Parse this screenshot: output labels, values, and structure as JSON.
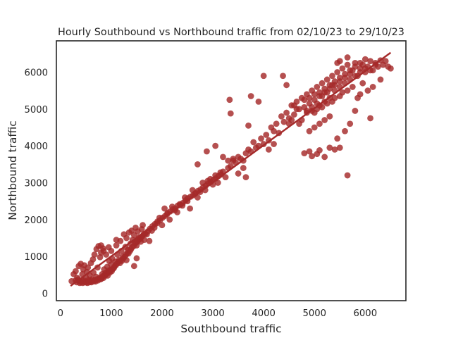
{
  "chart_data": {
    "type": "scatter",
    "title": "Hourly Southbound vs Northbound traffic from 02/10/23 to 29/10/23",
    "xlabel": "Southbound traffic",
    "ylabel": "Northbound traffic",
    "xlim": [
      -80,
      6800
    ],
    "ylim": [
      -200,
      6850
    ],
    "xticks": [
      0,
      1000,
      2000,
      3000,
      4000,
      5000,
      6000
    ],
    "yticks": [
      0,
      1000,
      2000,
      3000,
      4000,
      5000,
      6000
    ],
    "grid": false,
    "color": "#a52a2a",
    "regression_line": {
      "x": [
        200,
        6500
      ],
      "y": [
        200,
        6530
      ]
    },
    "points": [
      [
        220,
        330
      ],
      [
        260,
        520
      ],
      [
        300,
        600
      ],
      [
        330,
        420
      ],
      [
        360,
        740
      ],
      [
        380,
        280
      ],
      [
        400,
        800
      ],
      [
        420,
        350
      ],
      [
        430,
        520
      ],
      [
        450,
        650
      ],
      [
        470,
        760
      ],
      [
        480,
        300
      ],
      [
        500,
        430
      ],
      [
        520,
        580
      ],
      [
        540,
        700
      ],
      [
        560,
        330
      ],
      [
        580,
        480
      ],
      [
        600,
        820
      ],
      [
        620,
        380
      ],
      [
        640,
        920
      ],
      [
        650,
        560
      ],
      [
        670,
        1050
      ],
      [
        690,
        320
      ],
      [
        700,
        450
      ],
      [
        710,
        1200
      ],
      [
        730,
        700
      ],
      [
        750,
        1280
      ],
      [
        760,
        400
      ],
      [
        780,
        980
      ],
      [
        800,
        1100
      ],
      [
        820,
        520
      ],
      [
        840,
        1220
      ],
      [
        860,
        650
      ],
      [
        880,
        480
      ],
      [
        900,
        1050
      ],
      [
        920,
        720
      ],
      [
        940,
        580
      ],
      [
        960,
        880
      ],
      [
        980,
        620
      ],
      [
        1000,
        780
      ],
      [
        1020,
        940
      ],
      [
        1050,
        680
      ],
      [
        1080,
        860
      ],
      [
        1100,
        1300
      ],
      [
        1120,
        1050
      ],
      [
        1150,
        900
      ],
      [
        1180,
        1420
      ],
      [
        1200,
        1150
      ],
      [
        1230,
        1000
      ],
      [
        1250,
        1600
      ],
      [
        1280,
        1260
      ],
      [
        1300,
        1500
      ],
      [
        1330,
        1180
      ],
      [
        1350,
        1650
      ],
      [
        1380,
        1350
      ],
      [
        1400,
        1700
      ],
      [
        1420,
        1450
      ],
      [
        1450,
        1580
      ],
      [
        1480,
        1780
      ],
      [
        1500,
        1300
      ],
      [
        1520,
        1680
      ],
      [
        1550,
        1520
      ],
      [
        1580,
        1400
      ],
      [
        1600,
        1740
      ],
      [
        1620,
        1850
      ],
      [
        1650,
        1450
      ],
      [
        1700,
        1600
      ],
      [
        1750,
        1420
      ],
      [
        1800,
        1700
      ],
      [
        1850,
        1780
      ],
      [
        1900,
        1900
      ],
      [
        1950,
        2050
      ],
      [
        2000,
        1850
      ],
      [
        2050,
        2300
      ],
      [
        2100,
        2150
      ],
      [
        2150,
        2000
      ],
      [
        2200,
        2350
      ],
      [
        2250,
        2250
      ],
      [
        2300,
        2200
      ],
      [
        2350,
        2420
      ],
      [
        2400,
        2380
      ],
      [
        2450,
        2600
      ],
      [
        2500,
        2500
      ],
      [
        2550,
        2300
      ],
      [
        2600,
        2800
      ],
      [
        2650,
        2700
      ],
      [
        2700,
        2600
      ],
      [
        2750,
        2750
      ],
      [
        2800,
        3000
      ],
      [
        2850,
        2800
      ],
      [
        2900,
        3050
      ],
      [
        2950,
        3100
      ],
      [
        3000,
        2950
      ],
      [
        3050,
        3200
      ],
      [
        3100,
        3000
      ],
      [
        3150,
        3280
      ],
      [
        3200,
        3300
      ],
      [
        3250,
        3150
      ],
      [
        3300,
        3400
      ],
      [
        3350,
        3450
      ],
      [
        3400,
        3600
      ],
      [
        3450,
        3550
      ],
      [
        3500,
        3700
      ],
      [
        3550,
        3650
      ],
      [
        3600,
        3400
      ],
      [
        3650,
        3800
      ],
      [
        3700,
        3900
      ],
      [
        3750,
        3850
      ],
      [
        3800,
        4100
      ],
      [
        3850,
        3950
      ],
      [
        3900,
        4000
      ],
      [
        3950,
        4200
      ],
      [
        4000,
        4050
      ],
      [
        4050,
        4300
      ],
      [
        4100,
        4150
      ],
      [
        4150,
        4500
      ],
      [
        4200,
        4400
      ],
      [
        4250,
        4600
      ],
      [
        4300,
        4350
      ],
      [
        4350,
        4800
      ],
      [
        4400,
        4650
      ],
      [
        4450,
        4900
      ],
      [
        4500,
        4750
      ],
      [
        4550,
        5100
      ],
      [
        4600,
        4850
      ],
      [
        4650,
        5200
      ],
      [
        4700,
        5000
      ],
      [
        4750,
        5300
      ],
      [
        4800,
        5050
      ],
      [
        4850,
        5400
      ],
      [
        4900,
        5150
      ],
      [
        4950,
        5500
      ],
      [
        5000,
        5250
      ],
      [
        5050,
        5600
      ],
      [
        5100,
        5350
      ],
      [
        5150,
        5700
      ],
      [
        5200,
        5450
      ],
      [
        5250,
        5800
      ],
      [
        5300,
        5550
      ],
      [
        5350,
        5900
      ],
      [
        5400,
        5650
      ],
      [
        5450,
        6000
      ],
      [
        5500,
        5750
      ],
      [
        5550,
        6100
      ],
      [
        5600,
        5850
      ],
      [
        5650,
        6200
      ],
      [
        5700,
        5950
      ],
      [
        5750,
        6050
      ],
      [
        5800,
        6250
      ],
      [
        5850,
        5900
      ],
      [
        5900,
        6100
      ],
      [
        5950,
        6200
      ],
      [
        6000,
        6000
      ],
      [
        6050,
        6150
      ],
      [
        6100,
        6300
      ],
      [
        6150,
        6050
      ],
      [
        6200,
        6250
      ],
      [
        6250,
        6150
      ],
      [
        6300,
        6320
      ],
      [
        6350,
        6200
      ],
      [
        6400,
        6300
      ],
      [
        6450,
        6150
      ],
      [
        6500,
        6100
      ],
      [
        3330,
        5250
      ],
      [
        3350,
        4880
      ],
      [
        3700,
        4550
      ],
      [
        3750,
        5350
      ],
      [
        3900,
        5200
      ],
      [
        4000,
        5900
      ],
      [
        4380,
        5900
      ],
      [
        4450,
        5650
      ],
      [
        4200,
        4050
      ],
      [
        4100,
        3900
      ],
      [
        4800,
        3800
      ],
      [
        4900,
        3850
      ],
      [
        4950,
        3720
      ],
      [
        5050,
        3780
      ],
      [
        5100,
        3880
      ],
      [
        5200,
        3700
      ],
      [
        5300,
        3950
      ],
      [
        5400,
        3900
      ],
      [
        5500,
        3950
      ],
      [
        5650,
        3200
      ],
      [
        5450,
        4200
      ],
      [
        5600,
        4400
      ],
      [
        5700,
        4600
      ],
      [
        5800,
        4950
      ],
      [
        6100,
        4750
      ],
      [
        6150,
        5600
      ],
      [
        6300,
        5800
      ],
      [
        6050,
        5500
      ],
      [
        5950,
        5700
      ],
      [
        5900,
        5400
      ],
      [
        5850,
        5300
      ],
      [
        5750,
        5600
      ],
      [
        5650,
        5500
      ],
      [
        5550,
        5450
      ],
      [
        5500,
        5350
      ],
      [
        5400,
        5300
      ],
      [
        5350,
        5200
      ],
      [
        5250,
        5150
      ],
      [
        5150,
        5050
      ],
      [
        5050,
        5000
      ],
      [
        4950,
        4950
      ],
      [
        4850,
        4900
      ],
      [
        4750,
        4700
      ],
      [
        4700,
        4600
      ],
      [
        4650,
        5000
      ],
      [
        4600,
        5100
      ],
      [
        4550,
        4700
      ],
      [
        4500,
        4600
      ],
      [
        5000,
        4900
      ],
      [
        5100,
        5100
      ],
      [
        5200,
        5200
      ],
      [
        5300,
        5300
      ],
      [
        5400,
        5500
      ],
      [
        5500,
        5600
      ],
      [
        5600,
        5700
      ],
      [
        5700,
        5800
      ],
      [
        5800,
        5900
      ],
      [
        5900,
        6000
      ],
      [
        6000,
        6100
      ],
      [
        6100,
        6050
      ],
      [
        6200,
        6200
      ],
      [
        5300,
        4800
      ],
      [
        5200,
        4700
      ],
      [
        5100,
        4600
      ],
      [
        5000,
        4500
      ],
      [
        4900,
        4400
      ],
      [
        5350,
        5650
      ],
      [
        5250,
        5450
      ],
      [
        5150,
        5350
      ],
      [
        5050,
        5150
      ],
      [
        4950,
        5050
      ],
      [
        4850,
        4950
      ],
      [
        4800,
        5250
      ],
      [
        4900,
        5300
      ],
      [
        5000,
        5400
      ],
      [
        5100,
        5450
      ],
      [
        5200,
        5550
      ],
      [
        5300,
        5650
      ],
      [
        5400,
        5750
      ],
      [
        5500,
        5850
      ],
      [
        5600,
        5950
      ],
      [
        5700,
        6050
      ],
      [
        5800,
        6150
      ],
      [
        5900,
        6250
      ],
      [
        6000,
        6350
      ],
      [
        5650,
        6400
      ],
      [
        5500,
        6300
      ],
      [
        5450,
        6250
      ],
      [
        300,
        350
      ],
      [
        320,
        300
      ],
      [
        350,
        380
      ],
      [
        380,
        330
      ],
      [
        410,
        300
      ],
      [
        440,
        280
      ],
      [
        460,
        350
      ],
      [
        490,
        310
      ],
      [
        510,
        300
      ],
      [
        530,
        280
      ],
      [
        550,
        360
      ],
      [
        570,
        300
      ],
      [
        590,
        320
      ],
      [
        610,
        300
      ],
      [
        630,
        340
      ],
      [
        660,
        330
      ],
      [
        680,
        360
      ],
      [
        720,
        380
      ],
      [
        740,
        350
      ],
      [
        770,
        420
      ],
      [
        790,
        380
      ],
      [
        810,
        400
      ],
      [
        830,
        460
      ],
      [
        850,
        420
      ],
      [
        870,
        500
      ],
      [
        890,
        560
      ],
      [
        910,
        530
      ],
      [
        930,
        480
      ],
      [
        950,
        620
      ],
      [
        970,
        560
      ],
      [
        990,
        640
      ],
      [
        1010,
        600
      ],
      [
        1030,
        660
      ],
      [
        1060,
        720
      ],
      [
        1090,
        760
      ],
      [
        1110,
        800
      ],
      [
        1140,
        850
      ],
      [
        1170,
        820
      ],
      [
        1190,
        900
      ],
      [
        1210,
        880
      ],
      [
        1240,
        950
      ],
      [
        1270,
        1000
      ],
      [
        1290,
        1050
      ],
      [
        1320,
        1100
      ],
      [
        1340,
        1080
      ],
      [
        1370,
        1150
      ],
      [
        1390,
        1200
      ],
      [
        1410,
        1250
      ],
      [
        1440,
        1280
      ],
      [
        1470,
        1350
      ],
      [
        1490,
        1380
      ],
      [
        1510,
        1400
      ],
      [
        1540,
        1450
      ],
      [
        1570,
        1480
      ],
      [
        1590,
        1520
      ],
      [
        1610,
        1550
      ],
      [
        1640,
        1600
      ],
      [
        1670,
        1620
      ],
      [
        1720,
        1680
      ],
      [
        1760,
        1750
      ],
      [
        1810,
        1820
      ],
      [
        1860,
        1880
      ],
      [
        1910,
        1950
      ],
      [
        1960,
        1980
      ],
      [
        2010,
        2050
      ],
      [
        2060,
        2100
      ],
      [
        2110,
        2180
      ],
      [
        2160,
        2220
      ],
      [
        2210,
        2280
      ],
      [
        2260,
        2300
      ],
      [
        2310,
        2380
      ],
      [
        2360,
        2400
      ],
      [
        2410,
        2450
      ],
      [
        2460,
        2520
      ],
      [
        2510,
        2580
      ],
      [
        2560,
        2620
      ],
      [
        2610,
        2660
      ],
      [
        2660,
        2720
      ],
      [
        2710,
        2780
      ],
      [
        2760,
        2820
      ],
      [
        2810,
        2880
      ],
      [
        2860,
        2920
      ],
      [
        2910,
        2980
      ],
      [
        2960,
        3020
      ],
      [
        3010,
        3080
      ],
      [
        3060,
        3120
      ],
      [
        3110,
        3180
      ],
      [
        3160,
        3220
      ],
      [
        2700,
        3500
      ],
      [
        2880,
        3850
      ],
      [
        3050,
        4000
      ],
      [
        3200,
        3700
      ],
      [
        3300,
        3600
      ],
      [
        3400,
        3650
      ],
      [
        3500,
        3250
      ],
      [
        3600,
        3600
      ],
      [
        3650,
        3150
      ],
      [
        1500,
        950
      ],
      [
        1000,
        1150
      ],
      [
        1300,
        900
      ],
      [
        1450,
        740
      ],
      [
        1100,
        1450
      ],
      [
        950,
        1250
      ],
      [
        850,
        1150
      ],
      [
        800,
        1300
      ]
    ]
  }
}
